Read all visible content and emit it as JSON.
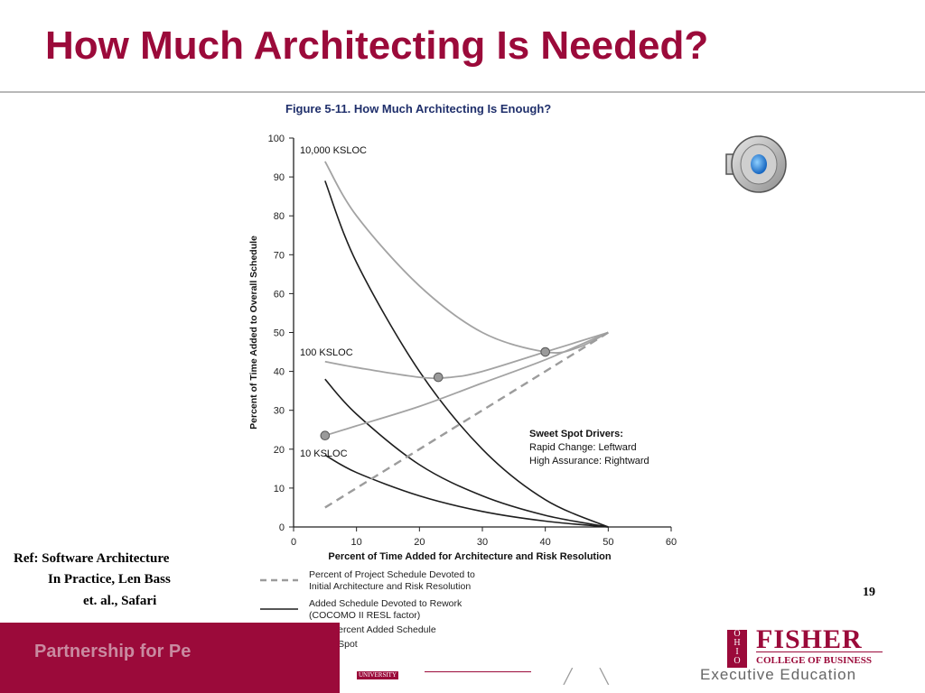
{
  "slide": {
    "title": "How Much Architecting Is Needed?",
    "reference": [
      "Ref: Software Architecture",
      "In Practice, Len Bass",
      "et. al., Safari"
    ],
    "page_number": "19",
    "footer_text": "Partnership for Pe",
    "logo": {
      "name": "FISHER",
      "subtitle": "COLLEGE OF BUSINESS",
      "tagline": "Executive Education",
      "badge": "UNIVERSITY",
      "box_text": "O HIO STATE UNIV ERSITY"
    },
    "speaker_icon": "speaker-icon"
  },
  "chart_data": {
    "type": "line",
    "title": "Figure 5-11. How Much Architecting Is Enough?",
    "xlabel": "Percent of Time Added for Architecture and Risk Resolution",
    "ylabel": "Percent of Time Added to Overall Schedule",
    "xlim": [
      0,
      60
    ],
    "ylim": [
      0,
      100
    ],
    "xticks": [
      0,
      10,
      20,
      30,
      40,
      50,
      60
    ],
    "yticks": [
      0,
      10,
      20,
      30,
      40,
      50,
      60,
      70,
      80,
      90,
      100
    ],
    "grid": false,
    "colors": {
      "total": "#a3a3a3",
      "rework": "#1e1e1e",
      "devoted": "#9c9c9c",
      "sweet_spot": "#9a9a9a"
    },
    "series": [
      {
        "name": "10,000 KSLOC",
        "kind": "total",
        "x": [
          5,
          10,
          20,
          30,
          40,
          45,
          50
        ],
        "y": [
          94,
          80,
          62,
          50,
          45,
          46,
          50
        ]
      },
      {
        "name": "10,000 KSLOC",
        "kind": "rework",
        "x": [
          5,
          10,
          20,
          30,
          40,
          50
        ],
        "y": [
          89,
          68,
          40,
          20,
          7,
          0
        ]
      },
      {
        "name": "100 KSLOC",
        "kind": "total",
        "x": [
          5,
          10,
          20,
          25,
          30,
          40,
          50
        ],
        "y": [
          42.5,
          41,
          38.5,
          38.5,
          40,
          45,
          50
        ]
      },
      {
        "name": "100 KSLOC",
        "kind": "rework",
        "x": [
          5,
          10,
          20,
          30,
          40,
          50
        ],
        "y": [
          38,
          29,
          16,
          8,
          3,
          0
        ]
      },
      {
        "name": "10 KSLOC",
        "kind": "total",
        "x": [
          5,
          10,
          20,
          30,
          40,
          50
        ],
        "y": [
          23.5,
          26,
          31,
          37,
          43,
          50
        ]
      },
      {
        "name": "10 KSLOC",
        "kind": "rework",
        "x": [
          5,
          10,
          20,
          30,
          40,
          50
        ],
        "y": [
          18.5,
          14,
          8,
          4,
          1.5,
          0
        ]
      },
      {
        "name": "Percent of Project Schedule Devoted to Initial Architecture and Risk Resolution",
        "kind": "devoted",
        "x": [
          5,
          50
        ],
        "y": [
          5,
          50
        ]
      }
    ],
    "sweet_spots": [
      {
        "x": 40,
        "y": 45
      },
      {
        "x": 23,
        "y": 38.5
      },
      {
        "x": 5,
        "y": 23.5
      }
    ],
    "curve_labels": [
      {
        "text": "10,000 KSLOC",
        "x": 1,
        "y": 97
      },
      {
        "text": "100 KSLOC",
        "x": 1,
        "y": 45
      },
      {
        "text": "10 KSLOC",
        "x": 1,
        "y": 19
      }
    ],
    "annotation": {
      "heading": "Sweet Spot Drivers:",
      "lines": [
        "Rapid Change: Leftward",
        "High Assurance: Rightward"
      ]
    },
    "legend": [
      {
        "style": "dashed",
        "label": "Percent of Project Schedule Devoted to\nInitial Architecture and Risk Resolution"
      },
      {
        "style": "dark",
        "label": "Added Schedule Devoted to Rework\n(COCOMO II RESL factor)"
      },
      {
        "style": "gray",
        "label": "Total Percent Added Schedule"
      },
      {
        "style": "dot",
        "label": "Sweet Spot"
      }
    ]
  }
}
